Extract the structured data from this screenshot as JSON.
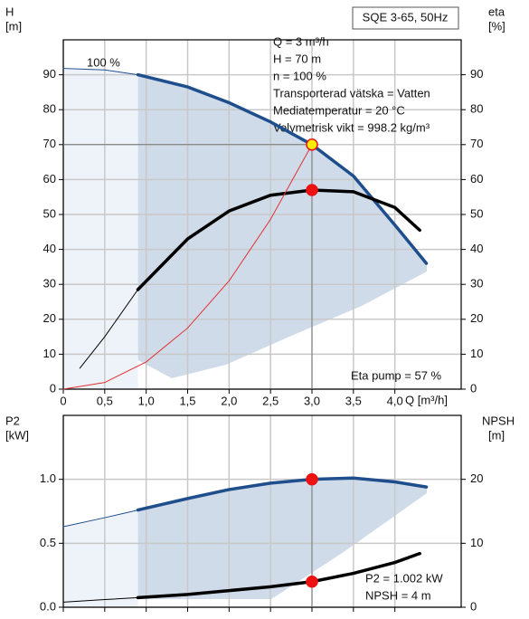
{
  "chart_data": [
    {
      "type": "line",
      "title": "SQE 3-65, 50Hz",
      "y_label": [
        "H",
        "[m]"
      ],
      "y2_label": [
        "eta",
        "[%]"
      ],
      "x_label": "Q [m³/h]",
      "xlim": [
        0,
        4.8
      ],
      "ylim": [
        0,
        100
      ],
      "y2lim": [
        0,
        100
      ],
      "xticks": [
        0,
        {
          "value": 0.5,
          "label": "0,5"
        },
        {
          "value": 1.0,
          "label": "1,0"
        },
        {
          "value": 1.5,
          "label": "1,5"
        },
        {
          "value": 2.0,
          "label": "2,0"
        },
        {
          "value": 2.5,
          "label": "2,5"
        },
        {
          "value": 3.0,
          "label": "3,0"
        },
        {
          "value": 3.5,
          "label": "3,5"
        },
        {
          "value": 4.0,
          "label": "4,0"
        }
      ],
      "yticks": [
        0,
        10,
        20,
        30,
        40,
        50,
        60,
        70,
        80,
        90
      ],
      "y2ticks": [
        0,
        10,
        20,
        30,
        40,
        50,
        60,
        70,
        80,
        90
      ],
      "grid": true,
      "info": [
        "Q = 3 m³/h",
        "H = 70 m",
        "n = 100 %",
        "Transporterad vätska = Vatten",
        "Mediatemperatur = 20 °C",
        "Volymetrisk vikt = 998.2 kg/m³"
      ],
      "annotations": [
        "100 %",
        "Eta pump = 57 %"
      ],
      "series": [
        {
          "color": "#1f4e8c",
          "width": 1,
          "x": [
            0,
            0.5,
            0.9
          ],
          "values": [
            91.8,
            91.4,
            90
          ]
        },
        {
          "color": "#1f4e8c",
          "width": 3.5,
          "x": [
            0.9,
            1.5,
            2.0,
            2.5,
            3.0,
            3.5,
            4.0,
            4.38
          ],
          "values": [
            90,
            86.5,
            82,
            76.5,
            70,
            61,
            47,
            36
          ]
        },
        {
          "color": "#000000",
          "width": 1,
          "axis": "y2",
          "x": [
            0.2,
            0.5,
            0.9
          ],
          "values": [
            6,
            15,
            28.5
          ]
        },
        {
          "color": "#000000",
          "width": 3.5,
          "axis": "y2",
          "x": [
            0.9,
            1.5,
            2.0,
            2.5,
            3.0,
            3.5,
            4.0,
            4.3
          ],
          "values": [
            28.5,
            43,
            51,
            55.5,
            57,
            56.5,
            52,
            45.5
          ]
        },
        {
          "color": "#e03030",
          "width": 1,
          "x": [
            0,
            0.5,
            1.0,
            1.5,
            2.0,
            2.5,
            3.0
          ],
          "values": [
            0,
            1.9,
            7.8,
            17.5,
            31,
            48.6,
            70
          ]
        }
      ],
      "points": [
        {
          "x": 3.0,
          "y": 70,
          "color": "#ffee00"
        },
        {
          "x": 3.0,
          "y": 57,
          "color": "#ee1111",
          "axis": "y2"
        }
      ]
    },
    {
      "type": "line",
      "y_label": [
        "P2",
        "[kW]"
      ],
      "y2_label": [
        "NPSH",
        "[m]"
      ],
      "xlim": [
        0,
        4.8
      ],
      "ylim": [
        0,
        1.5
      ],
      "y2lim": [
        0,
        30
      ],
      "xticks": [
        0,
        0.5,
        1.0,
        1.5,
        2.0,
        2.5,
        3.0,
        3.5,
        4.0
      ],
      "yticks": [
        {
          "value": 0,
          "label": "0.0"
        },
        {
          "value": 0.5,
          "label": "0.5"
        },
        {
          "value": 1.0,
          "label": "1.0"
        }
      ],
      "y2ticks": [
        0,
        10,
        20
      ],
      "grid": true,
      "annotations": [
        "P2 = 1.002 kW",
        "NPSH = 4 m"
      ],
      "series": [
        {
          "color": "#1f4e8c",
          "width": 1,
          "x": [
            0,
            0.5,
            0.9
          ],
          "values": [
            0.63,
            0.7,
            0.76
          ]
        },
        {
          "color": "#1f4e8c",
          "width": 3.5,
          "x": [
            0.9,
            1.5,
            2.0,
            2.5,
            3.0,
            3.5,
            4.0,
            4.38
          ],
          "values": [
            0.76,
            0.85,
            0.92,
            0.97,
            1.0,
            1.01,
            0.98,
            0.94
          ]
        },
        {
          "color": "#000000",
          "width": 1,
          "axis": "y2",
          "x": [
            0,
            0.5,
            0.9
          ],
          "values": [
            0.8,
            1.2,
            1.5
          ]
        },
        {
          "color": "#000000",
          "width": 3.5,
          "axis": "y2",
          "x": [
            0.9,
            1.5,
            2.0,
            2.5,
            3.0,
            3.5,
            4.0,
            4.3
          ],
          "values": [
            1.5,
            2,
            2.6,
            3.2,
            4,
            5.3,
            7,
            8.4
          ]
        }
      ],
      "points": [
        {
          "x": 3.0,
          "y": 1.0,
          "color": "#ee1111"
        },
        {
          "x": 3.0,
          "y": 4,
          "color": "#ee1111",
          "axis": "y2"
        }
      ]
    }
  ]
}
